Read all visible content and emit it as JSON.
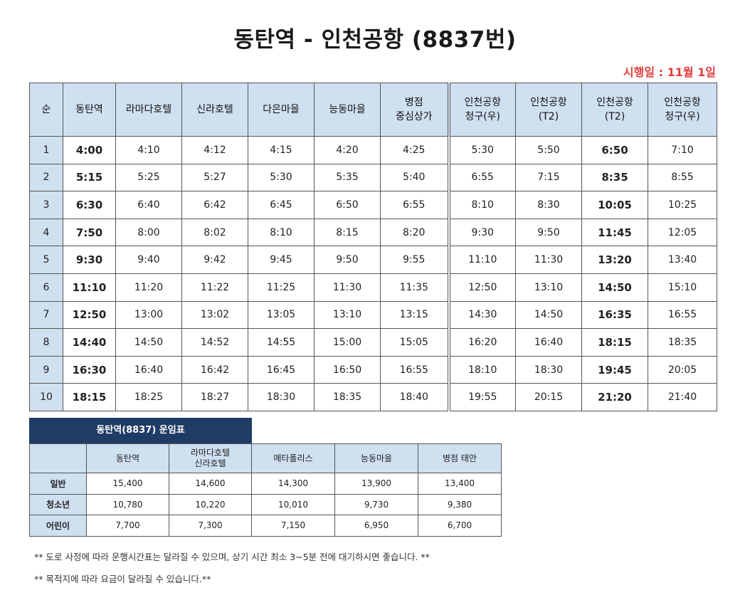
{
  "title": "동탄역 - 인천공항 (8837번)",
  "effective_date": "시행일 : 11월 1일",
  "schedule": {
    "headers": [
      "순",
      "동탄역",
      "라마다호텔",
      "신라호텔",
      "다은마을",
      "능동마을",
      "병점\n중심상가",
      "인천공항\n청구(우)",
      "인천공항\n(T2)",
      "인천공항\n(T2)",
      "인천공항\n청구(우)"
    ],
    "rows": [
      [
        "1",
        "4:00",
        "4:10",
        "4:12",
        "4:15",
        "4:20",
        "4:25",
        "5:30",
        "5:50",
        "6:50",
        "7:10"
      ],
      [
        "2",
        "5:15",
        "5:25",
        "5:27",
        "5:30",
        "5:35",
        "5:40",
        "6:55",
        "7:15",
        "8:35",
        "8:55"
      ],
      [
        "3",
        "6:30",
        "6:40",
        "6:42",
        "6:45",
        "6:50",
        "6:55",
        "8:10",
        "8:30",
        "10:05",
        "10:25"
      ],
      [
        "4",
        "7:50",
        "8:00",
        "8:02",
        "8:10",
        "8:15",
        "8:20",
        "9:30",
        "9:50",
        "11:45",
        "12:05"
      ],
      [
        "5",
        "9:30",
        "9:40",
        "9:42",
        "9:45",
        "9:50",
        "9:55",
        "11:10",
        "11:30",
        "13:20",
        "13:40"
      ],
      [
        "6",
        "11:10",
        "11:20",
        "11:22",
        "11:25",
        "11:30",
        "11:35",
        "12:50",
        "13:10",
        "14:50",
        "15:10"
      ],
      [
        "7",
        "12:50",
        "13:00",
        "13:02",
        "13:05",
        "13:10",
        "13:15",
        "14:30",
        "14:50",
        "16:35",
        "16:55"
      ],
      [
        "8",
        "14:40",
        "14:50",
        "14:52",
        "14:55",
        "15:00",
        "15:05",
        "16:20",
        "16:40",
        "18:15",
        "18:35"
      ],
      [
        "9",
        "16:30",
        "16:40",
        "16:42",
        "16:45",
        "16:50",
        "16:55",
        "18:10",
        "18:30",
        "19:45",
        "20:05"
      ],
      [
        "10",
        "18:15",
        "18:25",
        "18:27",
        "18:30",
        "18:35",
        "18:40",
        "19:55",
        "20:15",
        "21:20",
        "21:40"
      ]
    ]
  },
  "fare": {
    "title": "동탄역(8837) 운임표",
    "headers": [
      "",
      "동탄역",
      "라마다호텔\n신라호텔",
      "메타폴리스",
      "능동마을",
      "병점 태안"
    ],
    "rows": [
      [
        "일반",
        "15,400",
        "14,600",
        "14,300",
        "13,900",
        "13,400"
      ],
      [
        "청소년",
        "10,780",
        "10,220",
        "10,010",
        "9,730",
        "9,380"
      ],
      [
        "어린이",
        "7,700",
        "7,300",
        "7,150",
        "6,950",
        "6,700"
      ]
    ]
  },
  "notes": [
    "** 도로 사정에 따라 운행시간표는 달라질 수 있으며, 상기 시간 최소 3~5분 전에 대기하시면 좋습니다. **",
    "** 목적지에 따라 요금이 달라질 수 있습니다.**"
  ],
  "colors": {
    "header_bg": "#cfe0f1",
    "fare_title_bg": "#1f3c66",
    "effective_date": "#e23b3b"
  }
}
